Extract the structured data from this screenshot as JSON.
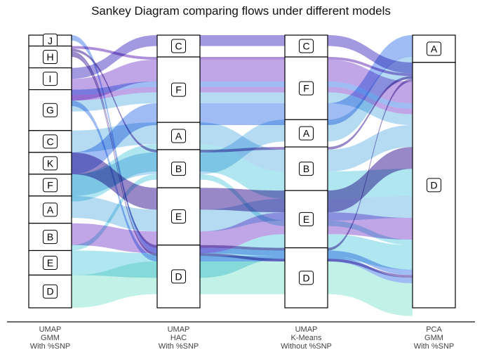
{
  "chart_data": {
    "type": "sankey",
    "title": "Sankey Diagram comparing flows under different models",
    "axes": [
      {
        "lines": [
          "UMAP",
          "GMM",
          "With %SNP"
        ]
      },
      {
        "lines": [
          "UMAP",
          "HAC",
          "With %SNP"
        ]
      },
      {
        "lines": [
          "UMAP",
          "K-Means",
          "Without %SNP"
        ]
      },
      {
        "lines": [
          "PCA",
          "GMM",
          "With %SNP"
        ]
      }
    ],
    "stages": [
      [
        {
          "label": "J",
          "value": 2
        },
        {
          "label": "H",
          "value": 4
        },
        {
          "label": "I",
          "value": 4
        },
        {
          "label": "G",
          "value": 7.5
        },
        {
          "label": "C",
          "value": 4
        },
        {
          "label": "K",
          "value": 4
        },
        {
          "label": "F",
          "value": 4
        },
        {
          "label": "A",
          "value": 5
        },
        {
          "label": "B",
          "value": 5
        },
        {
          "label": "E",
          "value": 4.5
        },
        {
          "label": "D",
          "value": 6
        }
      ],
      [
        {
          "label": "C",
          "value": 4
        },
        {
          "label": "F",
          "value": 12
        },
        {
          "label": "A",
          "value": 5
        },
        {
          "label": "B",
          "value": 7
        },
        {
          "label": "E",
          "value": 10.5
        },
        {
          "label": "D",
          "value": 11.5
        }
      ],
      [
        {
          "label": "C",
          "value": 4
        },
        {
          "label": "F",
          "value": 11.5
        },
        {
          "label": "A",
          "value": 5
        },
        {
          "label": "B",
          "value": 8
        },
        {
          "label": "E",
          "value": 10.5
        },
        {
          "label": "D",
          "value": 11
        }
      ],
      [
        {
          "label": "A",
          "value": 5
        },
        {
          "label": "D",
          "value": 45
        }
      ]
    ],
    "flows": [
      {
        "color": "#6a5acd",
        "v": [
          2,
          0,
          0,
          1
        ]
      },
      {
        "color": "#7b4bc4",
        "v": [
          1,
          1,
          1,
          1
        ]
      },
      {
        "color": "#5b3fa6",
        "v": [
          1,
          3,
          3,
          1
        ]
      },
      {
        "color": "#5b3fa6",
        "v": [
          1,
          5,
          5,
          1
        ]
      },
      {
        "color": "#9b6fd8",
        "v": [
          2,
          1,
          1,
          1
        ]
      },
      {
        "color": "#6495ed",
        "v": [
          3,
          1,
          1,
          1
        ]
      },
      {
        "color": "#9b6fd8",
        "v": [
          3,
          1,
          1,
          1
        ]
      },
      {
        "color": "#87c5eb",
        "v": [
          3,
          1,
          1,
          1
        ]
      },
      {
        "color": "#87c5eb",
        "v": [
          4,
          2,
          3,
          1
        ]
      },
      {
        "color": "#5b3fa6",
        "v": [
          4,
          4,
          4,
          1
        ]
      },
      {
        "color": "#6495ed",
        "v": [
          5,
          1,
          1,
          0
        ]
      },
      {
        "color": "#7fd6e6",
        "v": [
          5,
          2,
          3,
          1
        ]
      },
      {
        "color": "#87c5eb",
        "v": [
          6,
          3,
          2,
          0
        ]
      },
      {
        "color": "#87c5eb",
        "v": [
          7,
          4,
          3,
          1
        ]
      },
      {
        "color": "#9b6fd8",
        "v": [
          8,
          4,
          4,
          1
        ]
      },
      {
        "color": "#7fd6e6",
        "v": [
          8,
          3,
          3,
          1
        ]
      },
      {
        "color": "#7fd6e6",
        "v": [
          9,
          4,
          4,
          1
        ]
      },
      {
        "color": "#6495ed",
        "v": [
          0,
          5,
          5,
          1
        ]
      },
      {
        "color": "#5b3fa6",
        "v": [
          1,
          5,
          4,
          1
        ]
      },
      {
        "color": "#6495ed",
        "v": [
          2,
          5,
          5,
          1
        ]
      },
      {
        "color": "#9be8d8",
        "v": [
          10,
          5,
          5,
          1
        ]
      }
    ],
    "flow_values": [
      2,
      0.5,
      0.5,
      0.5,
      4,
      1,
      1,
      2,
      4,
      4,
      4,
      5,
      4,
      4,
      4,
      1,
      4.5,
      1,
      0.5,
      1,
      6
    ],
    "legend": "none"
  }
}
